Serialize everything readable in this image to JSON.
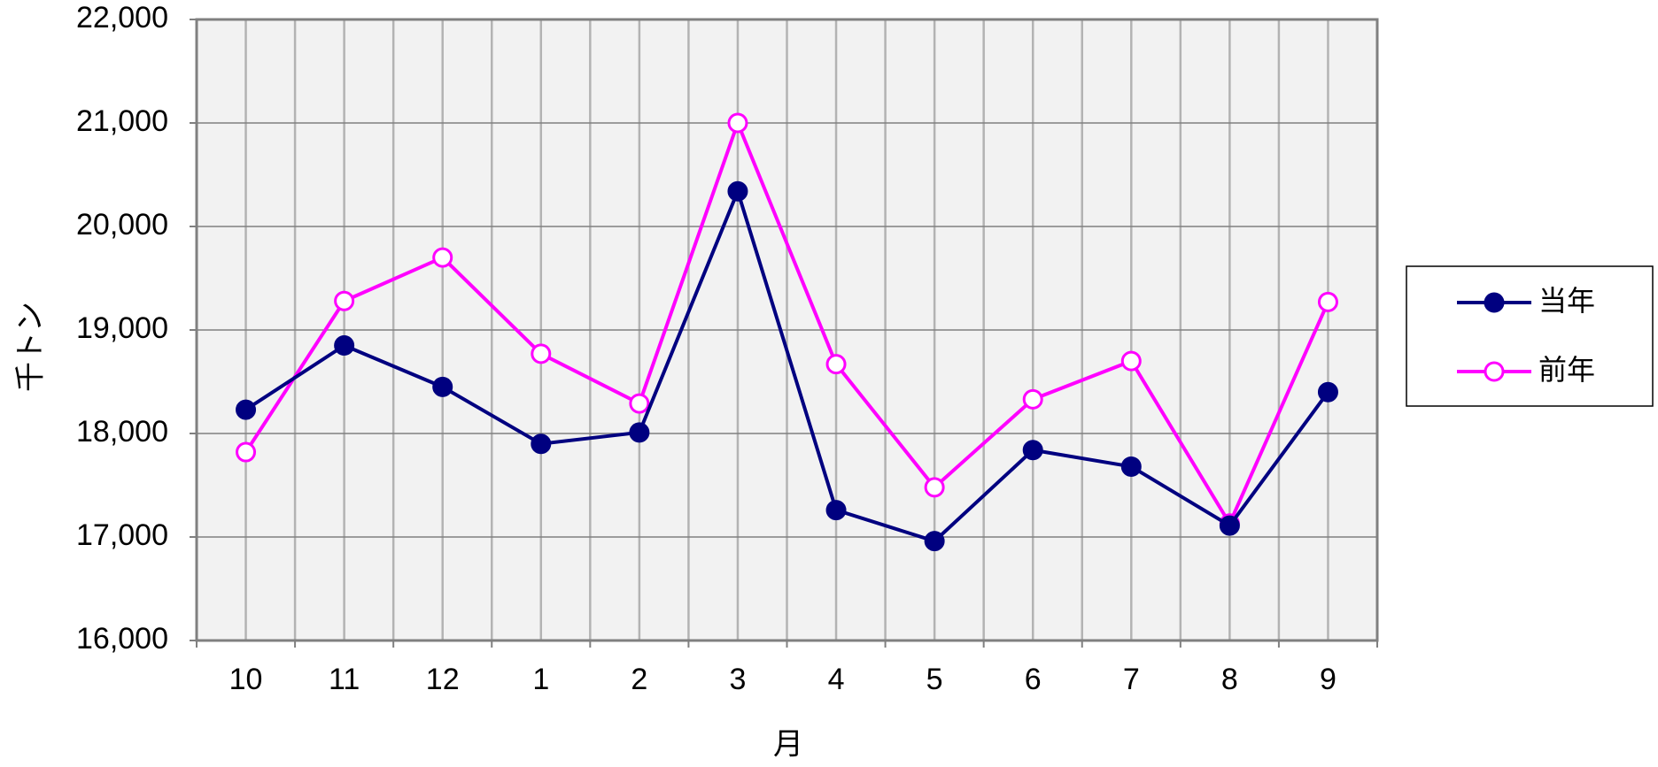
{
  "chart_data": {
    "type": "line",
    "title": "",
    "xlabel": "月",
    "ylabel": "千トン",
    "categories": [
      "10",
      "11",
      "12",
      "1",
      "2",
      "3",
      "4",
      "5",
      "6",
      "7",
      "8",
      "9"
    ],
    "y_ticks": [
      "16,000",
      "17,000",
      "18,000",
      "19,000",
      "20,000",
      "21,000",
      "22,000"
    ],
    "ylim": [
      16000,
      22000
    ],
    "grid": true,
    "legend_position": "right",
    "plot_background": "#f2f2f2",
    "series": [
      {
        "name": "当年",
        "color": "#000080",
        "marker": "filled-circle",
        "values": [
          18230,
          18850,
          18450,
          17900,
          18010,
          20340,
          17260,
          16960,
          17840,
          17680,
          17110,
          18400
        ]
      },
      {
        "name": "前年",
        "color": "#ff00ff",
        "marker": "open-circle",
        "values": [
          17820,
          19280,
          19700,
          18770,
          18290,
          21000,
          18670,
          17480,
          18330,
          18700,
          17130,
          19270
        ]
      }
    ]
  }
}
